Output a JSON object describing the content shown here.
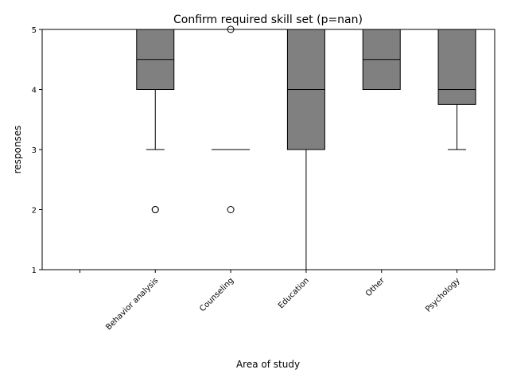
{
  "chart_data": {
    "type": "box",
    "title": "Confirm required skill set (p=nan)",
    "xlabel": "Area of study",
    "ylabel": "responses",
    "ylim": [
      1,
      5
    ],
    "yticks": [
      1,
      2,
      3,
      4,
      5
    ],
    "categories": [
      "",
      "Behavior analysis",
      "Counseling",
      "Education",
      "Other",
      "Psychology"
    ],
    "boxes": [
      null,
      {
        "whislo": 3,
        "q1": 4,
        "med": 4.5,
        "q3": 5,
        "whishi": 5,
        "fliers": [
          2,
          2
        ]
      },
      {
        "whislo": 3,
        "q1": 3,
        "med": 3,
        "q3": 3,
        "whishi": 3,
        "fliers": [
          5,
          2
        ]
      },
      {
        "whislo": 1,
        "q1": 3,
        "med": 4,
        "q3": 5,
        "whishi": 5,
        "fliers": []
      },
      {
        "whislo": 4,
        "q1": 4,
        "med": 4.5,
        "q3": 5,
        "whishi": 5,
        "fliers": []
      },
      {
        "whislo": 3,
        "q1": 3.75,
        "med": 4,
        "q3": 5,
        "whishi": 5,
        "fliers": []
      }
    ],
    "box_color": "#808080",
    "line_color": "#000000",
    "grid": false,
    "legend": "none"
  }
}
